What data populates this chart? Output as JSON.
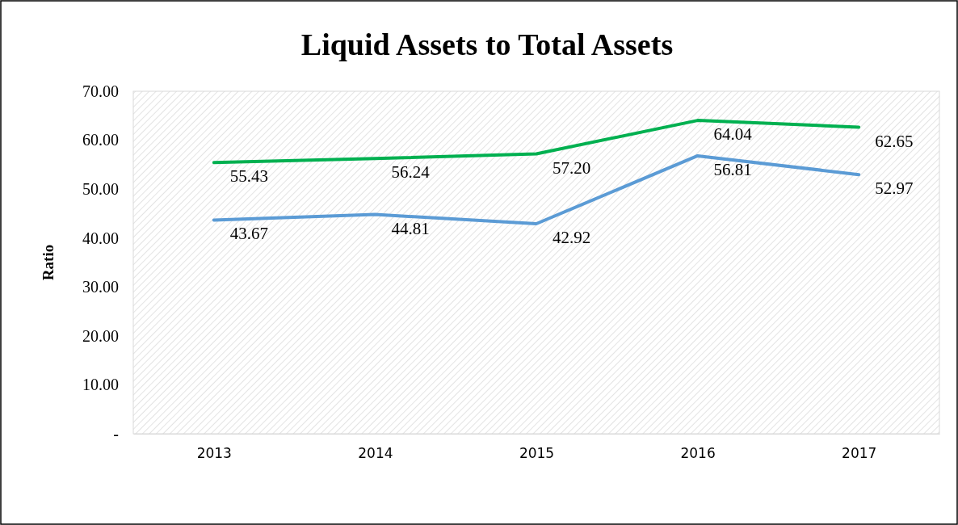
{
  "chart_data": {
    "type": "line",
    "title": "Liquid Assets to Total Assets",
    "ylabel": "Ratio",
    "categories": [
      "2013",
      "2014",
      "2015",
      "2016",
      "2017"
    ],
    "series": [
      {
        "color": "#5b9bd5",
        "values": [
          43.67,
          44.81,
          42.92,
          56.81,
          52.97
        ],
        "value_labels": [
          "43.67",
          "44.81",
          "42.92",
          "56.81",
          "52.97"
        ]
      },
      {
        "color": "#00b050",
        "values": [
          55.43,
          56.24,
          57.2,
          64.04,
          62.65
        ],
        "value_labels": [
          "55.43",
          "56.24",
          "57.20",
          "64.04",
          "62.65"
        ]
      }
    ],
    "ylim": [
      0,
      70
    ],
    "yticks": [
      {
        "value": 0,
        "label": "-"
      },
      {
        "value": 10,
        "label": "10.00"
      },
      {
        "value": 20,
        "label": "20.00"
      },
      {
        "value": 30,
        "label": "30.00"
      },
      {
        "value": 40,
        "label": "40.00"
      },
      {
        "value": 50,
        "label": "50.00"
      },
      {
        "value": 60,
        "label": "60.00"
      },
      {
        "value": 70,
        "label": "70.00"
      }
    ],
    "grid": false,
    "marker": "none",
    "line_style": "solid"
  }
}
